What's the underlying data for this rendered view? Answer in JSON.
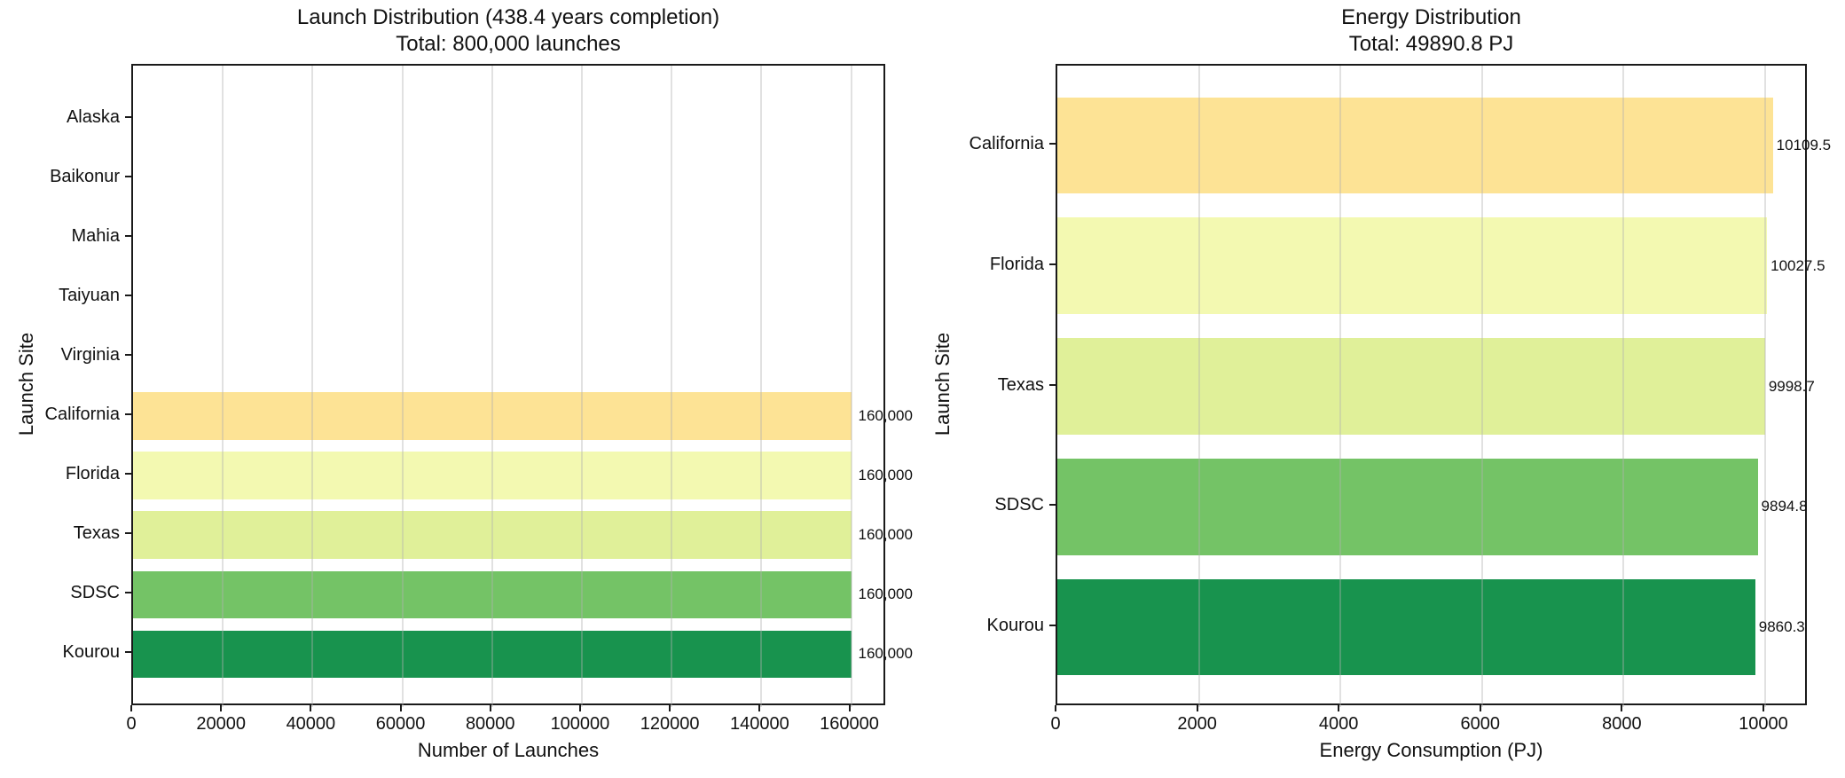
{
  "figure": {
    "background_color": "#ffffff",
    "spine_color": "#1a1a1a",
    "grid_color": "rgba(176,176,176,0.38)",
    "text_color": "#111111"
  },
  "chart_data": [
    {
      "type": "bar",
      "orientation": "horizontal",
      "title": "Launch Distribution (438.4 years completion)",
      "subtitle": "Total: 800,000 launches",
      "xlabel": "Number of Launches",
      "ylabel": "Launch Site",
      "categories": [
        "Alaska",
        "Baikonur",
        "Mahia",
        "Taiyuan",
        "Virginia",
        "California",
        "Florida",
        "Texas",
        "SDSC",
        "Kourou"
      ],
      "values": [
        0,
        0,
        0,
        0,
        0,
        160000,
        160000,
        160000,
        160000,
        160000
      ],
      "bar_labels": [
        "",
        "",
        "",
        "",
        "",
        "160,000",
        "160,000",
        "160,000",
        "160,000",
        "160,000"
      ],
      "bar_colors": [
        null,
        null,
        null,
        null,
        null,
        "#FDE395",
        "#F3F9B1",
        "#E0F099",
        "#74C366",
        "#18934E"
      ],
      "xlim": [
        0,
        168000
      ],
      "xticks": [
        0,
        20000,
        40000,
        60000,
        80000,
        100000,
        120000,
        140000,
        160000
      ],
      "xtick_labels": [
        "0",
        "20000",
        "40000",
        "60000",
        "80000",
        "100000",
        "120000",
        "140000",
        "160000"
      ],
      "grid": "x",
      "grid_over_bars": true,
      "legend": null
    },
    {
      "type": "bar",
      "orientation": "horizontal",
      "title": "Energy Distribution",
      "subtitle": "Total: 49890.8 PJ",
      "xlabel": "Energy Consumption (PJ)",
      "ylabel": "Launch Site",
      "categories": [
        "California",
        "Florida",
        "Texas",
        "SDSC",
        "Kourou"
      ],
      "values": [
        10109.5,
        10027.5,
        9998.7,
        9894.8,
        9860.3
      ],
      "bar_labels": [
        "10109.5",
        "10027.5",
        "9998.7",
        "9894.8",
        "9860.3"
      ],
      "bar_colors": [
        "#FDE395",
        "#F3F9B1",
        "#E0F099",
        "#74C366",
        "#18934E"
      ],
      "xlim": [
        0,
        10615
      ],
      "xticks": [
        0,
        2000,
        4000,
        6000,
        8000,
        10000
      ],
      "xtick_labels": [
        "0",
        "2000",
        "4000",
        "6000",
        "8000",
        "10000"
      ],
      "grid": "x",
      "grid_over_bars": true,
      "legend": null
    }
  ]
}
